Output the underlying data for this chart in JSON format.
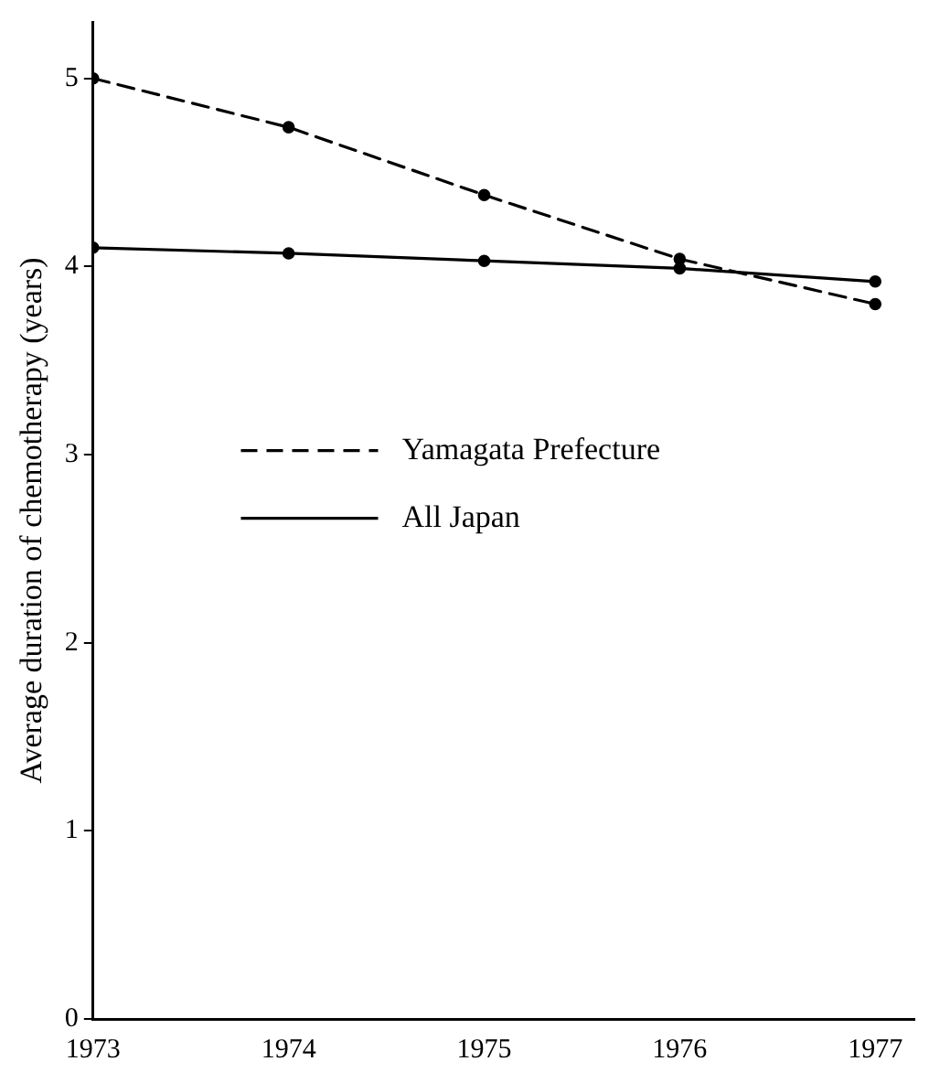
{
  "chart_data": {
    "type": "line",
    "ylabel": "Average duration of chemotherapy (years)",
    "x": [
      1973,
      1974,
      1975,
      1976,
      1977
    ],
    "series": [
      {
        "name": "Yamagata Prefecture",
        "color": "#000000",
        "line_style": "dashed",
        "values": [
          5.0,
          4.74,
          4.38,
          4.04,
          3.8
        ]
      },
      {
        "name": "All Japan",
        "color": "#000000",
        "line_style": "solid",
        "values": [
          4.1,
          4.07,
          4.03,
          3.99,
          3.92
        ]
      }
    ],
    "xlim": [
      1973,
      1977.2
    ],
    "xticks": [
      1973,
      1974,
      1975,
      1976,
      1977
    ],
    "ylim": [
      0,
      5.3
    ],
    "yticks": [
      0,
      1,
      2,
      3,
      4,
      5
    ],
    "grid": false,
    "legend": "center",
    "marker": "circle"
  }
}
